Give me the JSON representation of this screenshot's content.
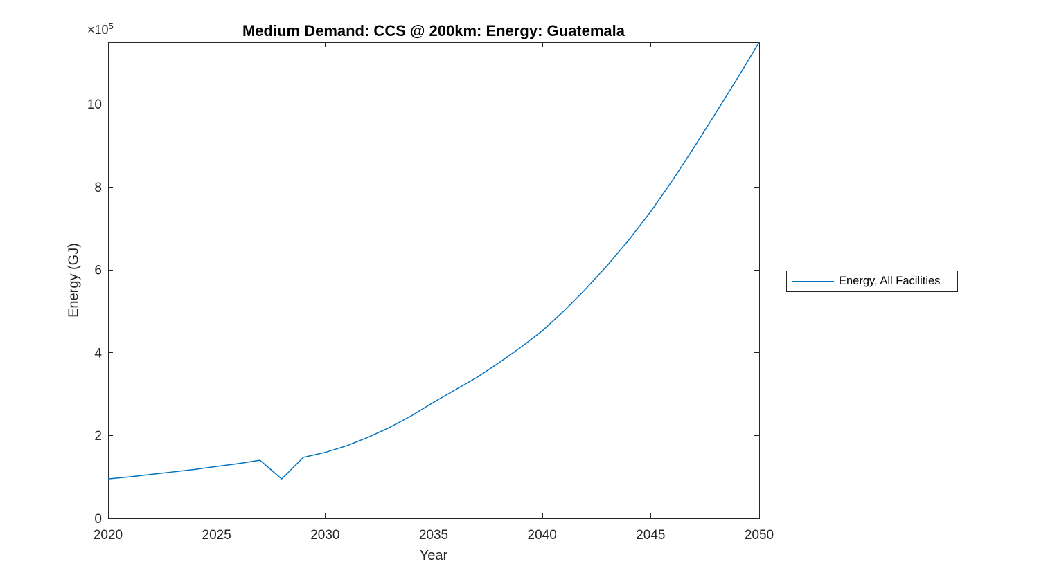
{
  "title": "Medium Demand: CCS @ 200km: Energy: Guatemala",
  "exponent": {
    "base": "×10",
    "power": "5"
  },
  "axes": {
    "xlabel": "Year",
    "ylabel": "Energy (GJ)"
  },
  "legend": {
    "position": "right-outside",
    "entries": [
      {
        "label": "Energy, All Facilities",
        "color": "#0072BD"
      }
    ]
  },
  "chart_data": {
    "type": "line",
    "title": "Medium Demand: CCS @ 200km: Energy: Guatemala",
    "xlabel": "Year",
    "ylabel": "Energy (GJ)",
    "y_exponent": 5,
    "grid": false,
    "box": true,
    "tick_direction": "in",
    "xlim": [
      2020,
      2050
    ],
    "ylim": [
      0,
      1149000
    ],
    "x_ticks": [
      {
        "value": 2020,
        "label": "2020"
      },
      {
        "value": 2025,
        "label": "2025"
      },
      {
        "value": 2030,
        "label": "2030"
      },
      {
        "value": 2035,
        "label": "2035"
      },
      {
        "value": 2040,
        "label": "2040"
      },
      {
        "value": 2045,
        "label": "2045"
      },
      {
        "value": 2050,
        "label": "2050"
      }
    ],
    "y_ticks": [
      {
        "value": 0,
        "label": "0"
      },
      {
        "value": 200000,
        "label": "2"
      },
      {
        "value": 400000,
        "label": "4"
      },
      {
        "value": 600000,
        "label": "6"
      },
      {
        "value": 800000,
        "label": "8"
      },
      {
        "value": 1000000,
        "label": "10"
      }
    ],
    "x": [
      2020,
      2021,
      2022,
      2023,
      2024,
      2025,
      2026,
      2027,
      2028,
      2029,
      2030,
      2031,
      2032,
      2033,
      2034,
      2035,
      2036,
      2037,
      2038,
      2039,
      2040,
      2041,
      2042,
      2043,
      2044,
      2045,
      2046,
      2047,
      2048,
      2049,
      2050
    ],
    "series": [
      {
        "name": "Energy, All Facilities",
        "color": "#0072BD",
        "values": [
          95000,
          100000,
          106000,
          112000,
          118000,
          125000,
          132000,
          140000,
          95000,
          147000,
          159000,
          175000,
          196000,
          220000,
          248000,
          280000,
          310000,
          340000,
          375000,
          412000,
          452000,
          500000,
          553000,
          610000,
          672000,
          740000,
          815000,
          895000,
          978000,
          1062000,
          1149000
        ]
      }
    ],
    "axis_color": "#262626",
    "text_color": "#262626"
  }
}
